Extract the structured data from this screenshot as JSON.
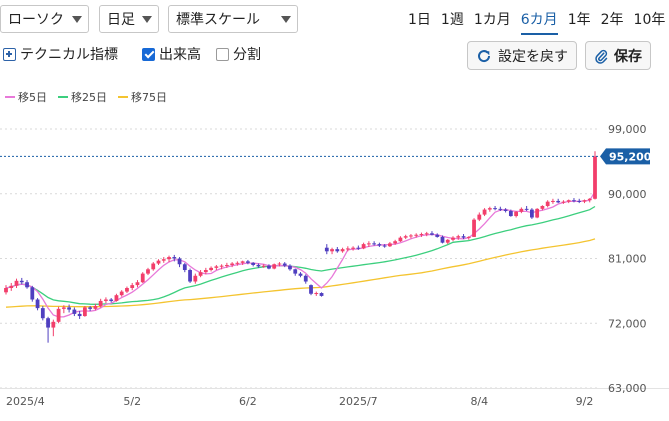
{
  "toolbar": {
    "chart_type": "ローソク",
    "interval": "日足",
    "scale": "標準スケール",
    "periods": [
      "1日",
      "1週",
      "1カ月",
      "6カ月",
      "1年",
      "2年",
      "10年"
    ],
    "active_period": "6カ月",
    "technical_label": "テクニカル指標",
    "volume_label": "出来高",
    "volume_checked": true,
    "split_label": "分割",
    "split_checked": false,
    "reset_label": "設定を戻す",
    "save_label": "保存",
    "accent_color": "#1a5fa6"
  },
  "legend": [
    {
      "label": "移5日",
      "color": "#e879d9"
    },
    {
      "label": "移25日",
      "color": "#3ccf7e"
    },
    {
      "label": "移75日",
      "color": "#f4c430"
    }
  ],
  "chart_data": {
    "type": "candlestick",
    "y_ticks": [
      "99,000",
      "90,000",
      "81,000",
      "72,000",
      "63,000"
    ],
    "y_tick_values": [
      99000,
      90000,
      81000,
      72000,
      63000
    ],
    "ylim": [
      63000,
      99000
    ],
    "x_labels": [
      "2025/4",
      "5/2",
      "6/2",
      "2025/7",
      "8/4",
      "9/2"
    ],
    "last_price_label": "95,200",
    "last_price": 95200,
    "grid": true,
    "up_color": "#f23e6b",
    "down_color": "#4f3fc0",
    "candles": [
      [
        76300,
        77300,
        76000,
        76900
      ],
      [
        76900,
        77600,
        76500,
        77200
      ],
      [
        77200,
        78200,
        76900,
        77900
      ],
      [
        77900,
        78300,
        77400,
        77700
      ],
      [
        77700,
        78000,
        76800,
        77000
      ],
      [
        77000,
        77200,
        75000,
        75300
      ],
      [
        75300,
        75500,
        73800,
        74100
      ],
      [
        74100,
        74400,
        72400,
        72700
      ],
      [
        72700,
        72900,
        69300,
        71400
      ],
      [
        71400,
        72500,
        70200,
        72200
      ],
      [
        72200,
        74300,
        72000,
        74000
      ],
      [
        74000,
        74500,
        73400,
        74200
      ],
      [
        74200,
        74600,
        73500,
        73900
      ],
      [
        73900,
        74200,
        73000,
        73300
      ],
      [
        73300,
        73700,
        72600,
        73000
      ],
      [
        73000,
        74400,
        72900,
        74200
      ],
      [
        74200,
        74400,
        73700,
        74000
      ],
      [
        74000,
        74700,
        73800,
        74400
      ],
      [
        74400,
        75400,
        74200,
        75100
      ],
      [
        75100,
        75600,
        74800,
        75300
      ],
      [
        75300,
        75500,
        74900,
        75100
      ],
      [
        75100,
        76100,
        75000,
        75900
      ],
      [
        75900,
        76600,
        75700,
        76400
      ],
      [
        76400,
        77100,
        76200,
        76900
      ],
      [
        76900,
        77600,
        76600,
        77300
      ],
      [
        77300,
        78000,
        77000,
        77700
      ],
      [
        77700,
        79100,
        77600,
        78900
      ],
      [
        78900,
        79700,
        78700,
        79500
      ],
      [
        79500,
        80500,
        79300,
        80300
      ],
      [
        80300,
        80900,
        80100,
        80700
      ],
      [
        80700,
        81200,
        80400,
        80900
      ],
      [
        80900,
        81400,
        80500,
        81200
      ],
      [
        81200,
        81500,
        80600,
        81000
      ],
      [
        81000,
        81200,
        79800,
        80200
      ],
      [
        80200,
        80400,
        79100,
        79400
      ],
      [
        79400,
        79600,
        77600,
        77800
      ],
      [
        77800,
        78900,
        77500,
        78600
      ],
      [
        78600,
        79400,
        78400,
        79100
      ],
      [
        79100,
        79700,
        78800,
        79400
      ],
      [
        79400,
        79900,
        79200,
        79700
      ],
      [
        79700,
        80100,
        79400,
        79900
      ],
      [
        79900,
        80200,
        79500,
        80000
      ],
      [
        80000,
        80400,
        79700,
        80100
      ],
      [
        80100,
        80500,
        79800,
        80300
      ],
      [
        80300,
        80600,
        80000,
        80400
      ],
      [
        80400,
        80700,
        80100,
        80600
      ],
      [
        80600,
        80800,
        80200,
        80400
      ],
      [
        80400,
        80500,
        79900,
        80100
      ],
      [
        80100,
        80300,
        79700,
        79900
      ],
      [
        79900,
        80200,
        79700,
        80000
      ],
      [
        80000,
        80200,
        79500,
        79600
      ],
      [
        79600,
        80300,
        79500,
        80200
      ],
      [
        80200,
        80500,
        79900,
        80300
      ],
      [
        80300,
        80500,
        79800,
        80000
      ],
      [
        80000,
        80200,
        79300,
        79500
      ],
      [
        79500,
        79600,
        78600,
        78900
      ],
      [
        78900,
        79100,
        78400,
        78600
      ],
      [
        78600,
        78800,
        77500,
        77800
      ],
      [
        77300,
        77400,
        75900,
        76100
      ],
      [
        76100,
        76400,
        75800,
        76200
      ],
      [
        76200,
        76300,
        75700,
        75800
      ],
      [
        82500,
        83000,
        81600,
        82000
      ],
      [
        82000,
        82500,
        81600,
        82300
      ],
      [
        82300,
        82600,
        81800,
        82000
      ],
      [
        82000,
        82500,
        81800,
        82300
      ],
      [
        82300,
        82700,
        82000,
        82400
      ],
      [
        82400,
        82700,
        82100,
        82500
      ],
      [
        82500,
        82800,
        82200,
        82400
      ],
      [
        82400,
        83200,
        82300,
        83000
      ],
      [
        83000,
        83400,
        82600,
        83100
      ],
      [
        83100,
        83400,
        82800,
        83000
      ],
      [
        83000,
        83200,
        82600,
        82800
      ],
      [
        82800,
        83000,
        82500,
        82700
      ],
      [
        82700,
        83300,
        82600,
        83100
      ],
      [
        83100,
        83600,
        82900,
        83400
      ],
      [
        83400,
        84100,
        83300,
        83900
      ],
      [
        83900,
        84300,
        83700,
        84100
      ],
      [
        84100,
        84400,
        83800,
        84200
      ],
      [
        84200,
        84500,
        83900,
        84300
      ],
      [
        84300,
        84600,
        84000,
        84400
      ],
      [
        84400,
        84700,
        84100,
        84500
      ],
      [
        84500,
        84800,
        84200,
        84300
      ],
      [
        84300,
        84500,
        83900,
        84000
      ],
      [
        84000,
        84200,
        83100,
        83200
      ],
      [
        83200,
        83700,
        83000,
        83600
      ],
      [
        83600,
        84100,
        83400,
        83900
      ],
      [
        83900,
        84300,
        83600,
        84100
      ],
      [
        84100,
        84400,
        83700,
        83900
      ],
      [
        83900,
        84100,
        83600,
        84000
      ],
      [
        84000,
        86600,
        84000,
        86400
      ],
      [
        86400,
        87400,
        86200,
        87100
      ],
      [
        87100,
        88000,
        86900,
        87800
      ],
      [
        87800,
        88200,
        87500,
        88000
      ],
      [
        88000,
        88300,
        87700,
        87900
      ],
      [
        87900,
        88200,
        87600,
        87800
      ],
      [
        87800,
        88000,
        87400,
        87600
      ],
      [
        87600,
        87800,
        86800,
        86900
      ],
      [
        86900,
        87600,
        86700,
        87500
      ],
      [
        87500,
        88100,
        87300,
        87900
      ],
      [
        87900,
        88300,
        87600,
        87800
      ],
      [
        87800,
        88000,
        86500,
        86700
      ],
      [
        86700,
        88000,
        86600,
        87900
      ],
      [
        87900,
        88400,
        87700,
        88300
      ],
      [
        88300,
        89100,
        88100,
        88900
      ],
      [
        88900,
        89300,
        88600,
        89000
      ],
      [
        89000,
        89300,
        88700,
        88800
      ],
      [
        88800,
        89100,
        88600,
        88900
      ],
      [
        88900,
        89200,
        88700,
        89100
      ],
      [
        89100,
        89400,
        88800,
        89000
      ],
      [
        89000,
        89300,
        88700,
        88900
      ],
      [
        88900,
        89200,
        88700,
        89100
      ],
      [
        89100,
        89400,
        88800,
        89300
      ],
      [
        89300,
        95900,
        89200,
        95200
      ]
    ]
  }
}
